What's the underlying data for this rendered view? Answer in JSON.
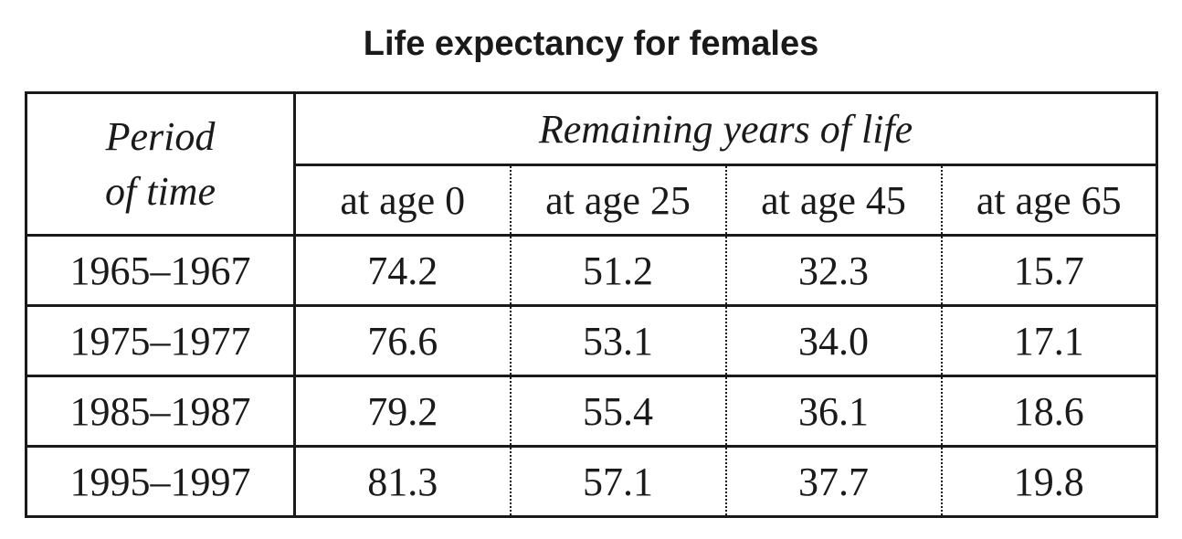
{
  "chart_data": {
    "type": "table",
    "title": "Life expectancy for females",
    "row_header": [
      "Period",
      "of time"
    ],
    "column_group": "Remaining years of life",
    "columns": [
      "at age 0",
      "at age 25",
      "at age 45",
      "at age 65"
    ],
    "rows": [
      {
        "period": "1965–1967",
        "values": [
          "74.2",
          "51.2",
          "32.3",
          "15.7"
        ]
      },
      {
        "period": "1975–1977",
        "values": [
          "76.6",
          "53.1",
          "34.0",
          "17.1"
        ]
      },
      {
        "period": "1985–1987",
        "values": [
          "79.2",
          "55.4",
          "36.1",
          "18.6"
        ]
      },
      {
        "period": "1995–1997",
        "values": [
          "81.3",
          "57.1",
          "37.7",
          "19.8"
        ]
      }
    ]
  }
}
